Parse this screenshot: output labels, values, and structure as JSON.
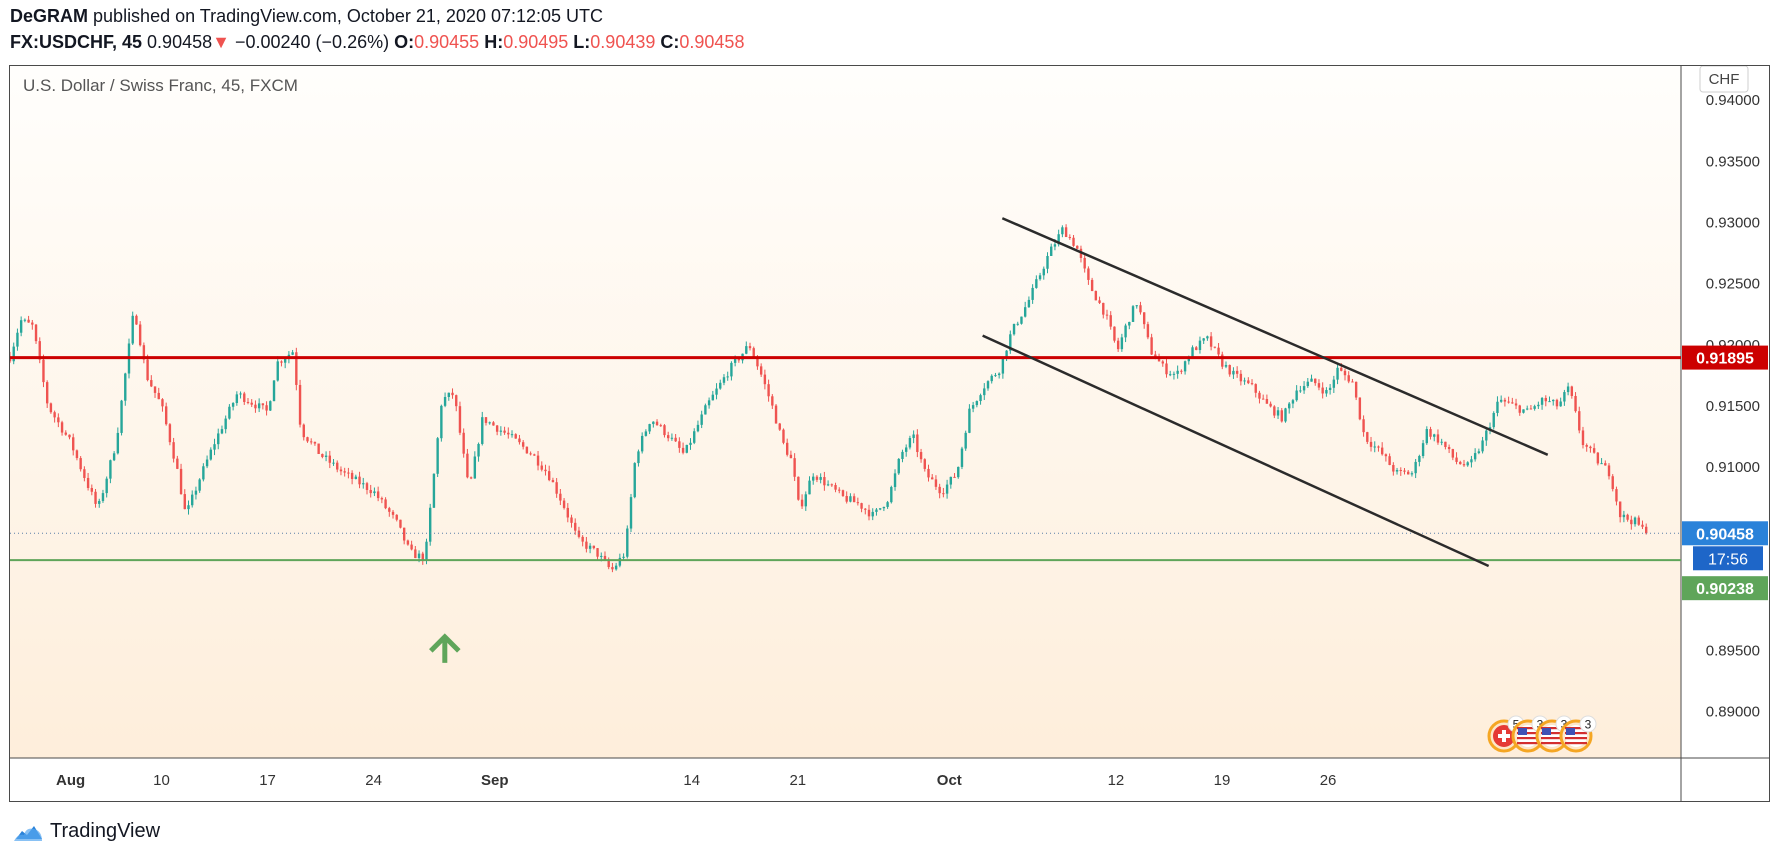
{
  "header": {
    "author": "DeGRAM",
    "published_text": "published on TradingView.com, October 21, 2020 07:12:05 UTC",
    "symbol": "FX:USDCHF, 45",
    "last": "0.90458",
    "change_arrow": "▼",
    "change": "−0.00240 (−0.26%)",
    "o_label": "O:",
    "o_value": "0.90455",
    "h_label": "H:",
    "h_value": "0.90495",
    "l_label": "L:",
    "l_value": "0.90439",
    "c_label": "C:",
    "c_value": "0.90458"
  },
  "chart_data": {
    "type": "candlestick",
    "title": "U.S. Dollar / Swiss Franc, 45, FXCM",
    "currency_label": "CHF",
    "ylim": [
      0.8862,
      0.9428
    ],
    "y_ticks": [
      "0.94000",
      "0.93500",
      "0.93000",
      "0.92500",
      "0.92000",
      "0.91500",
      "0.91000",
      "0.90000",
      "0.89500",
      "0.89000"
    ],
    "x_ticks": [
      {
        "label": "Aug",
        "bold": true,
        "day": 4
      },
      {
        "label": "10",
        "bold": false,
        "day": 10
      },
      {
        "label": "17",
        "bold": false,
        "day": 17
      },
      {
        "label": "24",
        "bold": false,
        "day": 24
      },
      {
        "label": "Sep",
        "bold": true,
        "day": 32
      },
      {
        "label": "14",
        "bold": false,
        "day": 45
      },
      {
        "label": "21",
        "bold": false,
        "day": 52
      },
      {
        "label": "Oct",
        "bold": true,
        "day": 62
      },
      {
        "label": "12",
        "bold": false,
        "day": 73
      },
      {
        "label": "19",
        "bold": false,
        "day": 80
      },
      {
        "label": "26",
        "bold": false,
        "day": 87
      }
    ],
    "price_path": [
      [
        0,
        0.919
      ],
      [
        0.7,
        0.922
      ],
      [
        1.5,
        0.9215
      ],
      [
        2.5,
        0.915
      ],
      [
        4,
        0.912
      ],
      [
        5.8,
        0.9065
      ],
      [
        7,
        0.912
      ],
      [
        8.2,
        0.923
      ],
      [
        9,
        0.9175
      ],
      [
        10,
        0.915
      ],
      [
        11,
        0.91
      ],
      [
        11.6,
        0.906
      ],
      [
        12.5,
        0.909
      ],
      [
        13.5,
        0.912
      ],
      [
        15,
        0.916
      ],
      [
        17,
        0.9145
      ],
      [
        17.6,
        0.9185
      ],
      [
        18.7,
        0.9195
      ],
      [
        19.2,
        0.913
      ],
      [
        20.5,
        0.911
      ],
      [
        22,
        0.9095
      ],
      [
        24,
        0.908
      ],
      [
        25.5,
        0.9055
      ],
      [
        26.4,
        0.903
      ],
      [
        27.4,
        0.9025
      ],
      [
        28.5,
        0.9155
      ],
      [
        29.3,
        0.916
      ],
      [
        30.3,
        0.908
      ],
      [
        31.2,
        0.914
      ],
      [
        33,
        0.9125
      ],
      [
        34.5,
        0.911
      ],
      [
        35.5,
        0.9095
      ],
      [
        36.5,
        0.907
      ],
      [
        37.5,
        0.904
      ],
      [
        38.7,
        0.903
      ],
      [
        39.7,
        0.9015
      ],
      [
        40.6,
        0.903
      ],
      [
        41.3,
        0.911
      ],
      [
        42.3,
        0.914
      ],
      [
        43.5,
        0.9125
      ],
      [
        44.5,
        0.911
      ],
      [
        46,
        0.915
      ],
      [
        47.5,
        0.918
      ],
      [
        48.8,
        0.92
      ],
      [
        49.6,
        0.9175
      ],
      [
        50.3,
        0.915
      ],
      [
        51,
        0.912
      ],
      [
        51.6,
        0.9105
      ],
      [
        52.1,
        0.9065
      ],
      [
        53,
        0.9095
      ],
      [
        54,
        0.9085
      ],
      [
        55,
        0.9075
      ],
      [
        56,
        0.907
      ],
      [
        57,
        0.906
      ],
      [
        58,
        0.9075
      ],
      [
        58.8,
        0.911
      ],
      [
        59.6,
        0.9125
      ],
      [
        60.4,
        0.9095
      ],
      [
        61.5,
        0.908
      ],
      [
        62.5,
        0.9095
      ],
      [
        63.3,
        0.9145
      ],
      [
        64.2,
        0.9165
      ],
      [
        65.3,
        0.918
      ],
      [
        66.1,
        0.921
      ],
      [
        67.2,
        0.9235
      ],
      [
        68.6,
        0.9275
      ],
      [
        69.5,
        0.9295
      ],
      [
        70.4,
        0.928
      ],
      [
        71.2,
        0.925
      ],
      [
        72.3,
        0.9225
      ],
      [
        73.1,
        0.9195
      ],
      [
        73.8,
        0.922
      ],
      [
        74.4,
        0.9235
      ],
      [
        75.3,
        0.9195
      ],
      [
        76.2,
        0.918
      ],
      [
        77,
        0.9175
      ],
      [
        78,
        0.9195
      ],
      [
        79,
        0.9205
      ],
      [
        80,
        0.9185
      ],
      [
        80.8,
        0.9175
      ],
      [
        82,
        0.9165
      ],
      [
        83,
        0.915
      ],
      [
        84,
        0.914
      ],
      [
        85,
        0.9165
      ],
      [
        86,
        0.917
      ],
      [
        87,
        0.916
      ],
      [
        87.6,
        0.918
      ],
      [
        88.6,
        0.917
      ],
      [
        89.4,
        0.9125
      ],
      [
        90.6,
        0.911
      ],
      [
        91.5,
        0.9095
      ],
      [
        92.6,
        0.9095
      ],
      [
        93.5,
        0.913
      ],
      [
        94.5,
        0.912
      ],
      [
        95.4,
        0.9105
      ],
      [
        96.3,
        0.91
      ],
      [
        97.2,
        0.912
      ],
      [
        98.3,
        0.9155
      ],
      [
        99.2,
        0.915
      ],
      [
        100.2,
        0.9145
      ],
      [
        101.2,
        0.9155
      ],
      [
        102.2,
        0.915
      ],
      [
        102.9,
        0.9165
      ],
      [
        103.8,
        0.912
      ],
      [
        104.8,
        0.9105
      ],
      [
        105.6,
        0.9095
      ],
      [
        106.3,
        0.906
      ],
      [
        107.3,
        0.9055
      ],
      [
        108,
        0.90458
      ]
    ],
    "horizontal_lines": [
      {
        "name": "resistance",
        "price": 0.91895,
        "color": "#cc0000",
        "label": "0.91895"
      },
      {
        "name": "support",
        "price": 0.90238,
        "color": "#5fa55a",
        "label": "0.90238"
      }
    ],
    "last_price": {
      "value": 0.90458,
      "label": "0.90458",
      "color": "#2a82d9"
    },
    "countdown": {
      "label": "17:56",
      "color": "#1e66c8"
    },
    "trend_channel": [
      {
        "name": "upper",
        "from": [
          65.5,
          0.93035
        ],
        "to": [
          101.5,
          0.911
        ],
        "color": "#2b2b2b"
      },
      {
        "name": "lower",
        "from": [
          64.2,
          0.92075
        ],
        "to": [
          97.6,
          0.9019
        ],
        "color": "#2b2b2b"
      }
    ],
    "arrow": {
      "x": 28.7,
      "price": 0.8948,
      "direction": "up",
      "color": "#5fa55a"
    },
    "events": [
      {
        "count": "5",
        "icon": "swiss-flag"
      },
      {
        "count": "3",
        "icon": "us-flag"
      },
      {
        "count": "3",
        "icon": "us-flag"
      },
      {
        "count": "3",
        "icon": "us-flag"
      }
    ],
    "colors": {
      "up": "#26a69a",
      "down": "#ef5350",
      "background_top": "#fffefc",
      "background_bottom": "#feeedb"
    }
  },
  "footer": {
    "brand": "TradingView"
  }
}
